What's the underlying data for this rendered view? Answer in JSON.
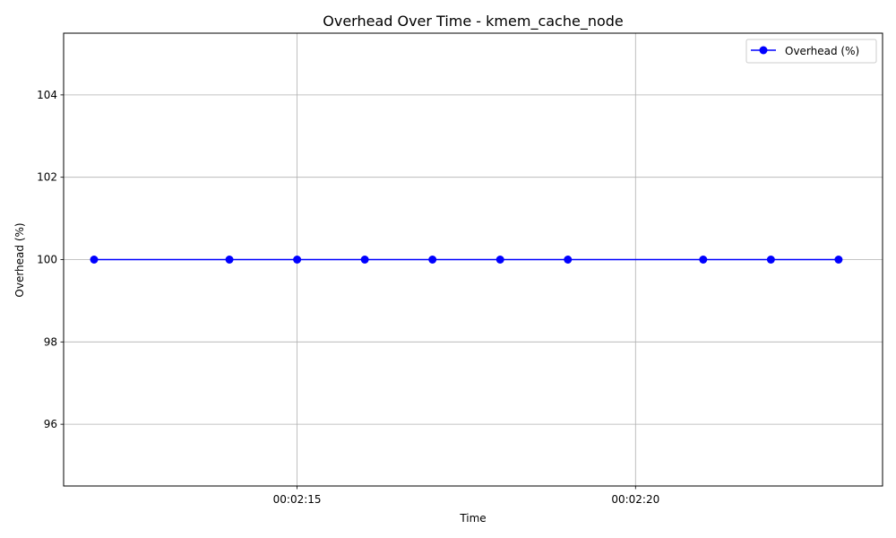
{
  "chart_data": {
    "type": "line",
    "title": "Overhead Over Time - kmem_cache_node",
    "xlabel": "Time",
    "ylabel": "Overhead (%)",
    "x": [
      "00:02:12",
      "00:02:14",
      "00:02:15",
      "00:02:16",
      "00:02:17",
      "00:02:18",
      "00:02:19",
      "00:02:21",
      "00:02:22",
      "00:02:23"
    ],
    "series": [
      {
        "name": "Overhead (%)",
        "color": "#0000ff",
        "marker": "circle",
        "values": [
          100,
          100,
          100,
          100,
          100,
          100,
          100,
          100,
          100,
          100
        ]
      }
    ],
    "xlim": [
      "00:02:11.55",
      "00:02:23.65"
    ],
    "ylim": [
      94.5,
      105.5
    ],
    "xticks": [
      "00:02:15",
      "00:02:20"
    ],
    "yticks": [
      96,
      98,
      100,
      102,
      104
    ],
    "grid": true,
    "legend_position": "top-right"
  }
}
